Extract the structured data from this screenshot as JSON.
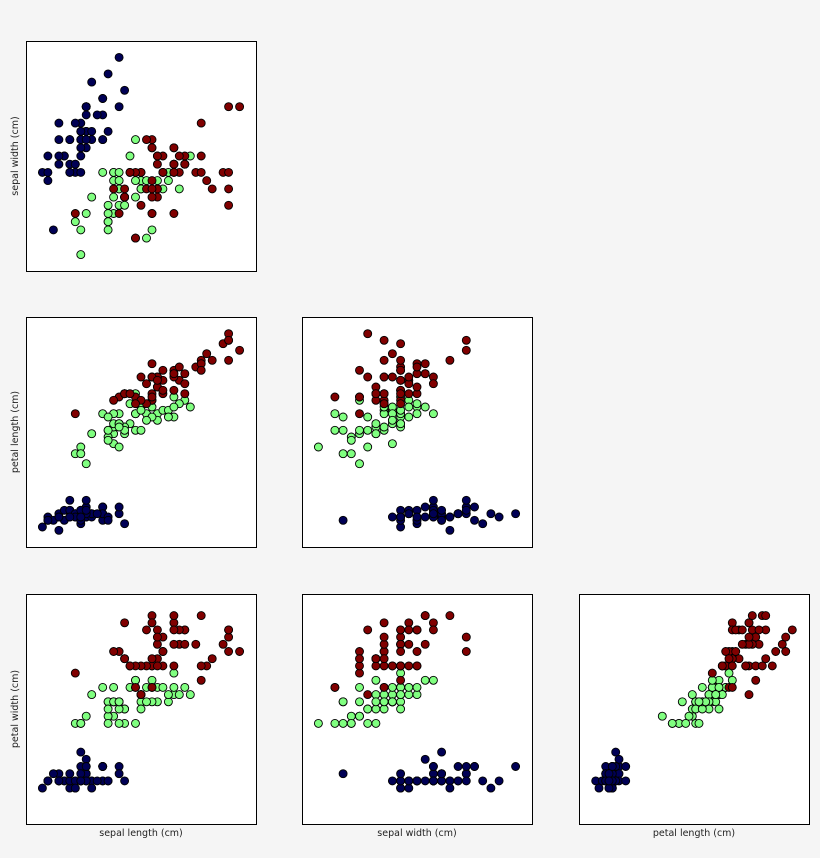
{
  "figure": {
    "title": ""
  },
  "colors": {
    "setosa": "#000055",
    "versicolor": "#80ff80",
    "virginica": "#800000"
  },
  "labels": {
    "sepal_length": "sepal length (cm)",
    "sepal_width": "sepal width (cm)",
    "petal_length": "petal length (cm)",
    "petal_width": "petal width (cm)"
  },
  "chart_data": {
    "type": "scatter",
    "title": "",
    "grid": false,
    "legend": "none",
    "ticks": "hidden",
    "variables": [
      "sepal_length",
      "sepal_width",
      "petal_length",
      "petal_width"
    ],
    "panels": [
      {
        "x": "sepal_length",
        "y": "sepal_width",
        "xlim": [
          4.0,
          8.2
        ],
        "ylim": [
          1.8,
          4.6
        ]
      },
      {
        "x": "sepal_length",
        "y": "petal_length",
        "xlim": [
          4.0,
          8.2
        ],
        "ylim": [
          0.5,
          7.4
        ]
      },
      {
        "x": "sepal_width",
        "y": "petal_length",
        "xlim": [
          1.8,
          4.6
        ],
        "ylim": [
          0.5,
          7.4
        ]
      },
      {
        "x": "sepal_length",
        "y": "petal_width",
        "xlim": [
          4.0,
          8.2
        ],
        "ylim": [
          -0.4,
          2.8
        ]
      },
      {
        "x": "sepal_width",
        "y": "petal_width",
        "xlim": [
          1.8,
          4.6
        ],
        "ylim": [
          -0.4,
          2.8
        ]
      },
      {
        "x": "petal_length",
        "y": "petal_width",
        "xlim": [
          0.5,
          7.4
        ],
        "ylim": [
          -0.4,
          2.8
        ]
      }
    ],
    "series": [
      {
        "key": "setosa",
        "points": [
          [
            5.1,
            3.5,
            1.4,
            0.2
          ],
          [
            4.9,
            3.0,
            1.4,
            0.2
          ],
          [
            4.7,
            3.2,
            1.3,
            0.2
          ],
          [
            4.6,
            3.1,
            1.5,
            0.2
          ],
          [
            5.0,
            3.6,
            1.4,
            0.2
          ],
          [
            5.4,
            3.9,
            1.7,
            0.4
          ],
          [
            4.6,
            3.4,
            1.4,
            0.3
          ],
          [
            5.0,
            3.4,
            1.5,
            0.2
          ],
          [
            4.4,
            2.9,
            1.4,
            0.2
          ],
          [
            4.9,
            3.1,
            1.5,
            0.1
          ],
          [
            5.4,
            3.7,
            1.5,
            0.2
          ],
          [
            4.8,
            3.4,
            1.6,
            0.2
          ],
          [
            4.8,
            3.0,
            1.4,
            0.1
          ],
          [
            4.3,
            3.0,
            1.1,
            0.1
          ],
          [
            5.8,
            4.0,
            1.2,
            0.2
          ],
          [
            5.7,
            4.4,
            1.5,
            0.4
          ],
          [
            5.4,
            3.9,
            1.3,
            0.4
          ],
          [
            5.1,
            3.5,
            1.4,
            0.3
          ],
          [
            5.7,
            3.8,
            1.7,
            0.3
          ],
          [
            5.1,
            3.8,
            1.5,
            0.3
          ],
          [
            5.4,
            3.4,
            1.7,
            0.2
          ],
          [
            5.1,
            3.7,
            1.5,
            0.4
          ],
          [
            4.6,
            3.6,
            1.0,
            0.2
          ],
          [
            5.1,
            3.3,
            1.7,
            0.5
          ],
          [
            4.8,
            3.4,
            1.9,
            0.2
          ],
          [
            5.0,
            3.0,
            1.6,
            0.2
          ],
          [
            5.0,
            3.4,
            1.6,
            0.4
          ],
          [
            5.2,
            3.5,
            1.5,
            0.2
          ],
          [
            5.2,
            3.4,
            1.4,
            0.2
          ],
          [
            4.7,
            3.2,
            1.6,
            0.2
          ],
          [
            4.8,
            3.1,
            1.6,
            0.2
          ],
          [
            5.4,
            3.4,
            1.5,
            0.4
          ],
          [
            5.2,
            4.1,
            1.5,
            0.1
          ],
          [
            5.5,
            4.2,
            1.4,
            0.2
          ],
          [
            4.9,
            3.1,
            1.5,
            0.2
          ],
          [
            5.0,
            3.2,
            1.2,
            0.2
          ],
          [
            5.5,
            3.5,
            1.3,
            0.2
          ],
          [
            4.9,
            3.6,
            1.4,
            0.1
          ],
          [
            4.4,
            3.0,
            1.3,
            0.2
          ],
          [
            5.1,
            3.4,
            1.5,
            0.2
          ],
          [
            5.0,
            3.5,
            1.3,
            0.3
          ],
          [
            4.5,
            2.3,
            1.3,
            0.3
          ],
          [
            4.4,
            3.2,
            1.3,
            0.2
          ],
          [
            5.0,
            3.5,
            1.6,
            0.6
          ],
          [
            5.1,
            3.8,
            1.9,
            0.4
          ],
          [
            4.8,
            3.0,
            1.4,
            0.3
          ],
          [
            5.1,
            3.8,
            1.6,
            0.2
          ],
          [
            4.6,
            3.2,
            1.4,
            0.2
          ],
          [
            5.3,
            3.7,
            1.5,
            0.2
          ],
          [
            5.0,
            3.3,
            1.4,
            0.2
          ]
        ]
      },
      {
        "key": "versicolor",
        "points": [
          [
            7.0,
            3.2,
            4.7,
            1.4
          ],
          [
            6.4,
            3.2,
            4.5,
            1.5
          ],
          [
            6.9,
            3.1,
            4.9,
            1.5
          ],
          [
            5.5,
            2.3,
            4.0,
            1.3
          ],
          [
            6.5,
            2.8,
            4.6,
            1.5
          ],
          [
            5.7,
            2.8,
            4.5,
            1.3
          ],
          [
            6.3,
            3.3,
            4.7,
            1.6
          ],
          [
            4.9,
            2.4,
            3.3,
            1.0
          ],
          [
            6.6,
            2.9,
            4.6,
            1.3
          ],
          [
            5.2,
            2.7,
            3.9,
            1.4
          ],
          [
            5.0,
            2.0,
            3.5,
            1.0
          ],
          [
            5.9,
            3.0,
            4.2,
            1.5
          ],
          [
            6.0,
            2.2,
            4.0,
            1.0
          ],
          [
            6.1,
            2.9,
            4.7,
            1.4
          ],
          [
            5.6,
            2.9,
            3.6,
            1.3
          ],
          [
            6.7,
            3.1,
            4.4,
            1.4
          ],
          [
            5.6,
            3.0,
            4.5,
            1.5
          ],
          [
            5.8,
            2.7,
            4.1,
            1.0
          ],
          [
            6.2,
            2.2,
            4.5,
            1.5
          ],
          [
            5.6,
            2.5,
            3.9,
            1.1
          ],
          [
            5.9,
            3.2,
            4.8,
            1.8
          ],
          [
            6.1,
            2.8,
            4.0,
            1.3
          ],
          [
            6.3,
            2.5,
            4.9,
            1.5
          ],
          [
            6.1,
            2.8,
            4.7,
            1.2
          ],
          [
            6.4,
            2.9,
            4.3,
            1.3
          ],
          [
            6.6,
            3.0,
            4.4,
            1.4
          ],
          [
            6.8,
            2.8,
            4.8,
            1.4
          ],
          [
            6.7,
            3.0,
            5.0,
            1.7
          ],
          [
            6.0,
            2.9,
            4.5,
            1.5
          ],
          [
            5.7,
            2.6,
            3.5,
            1.0
          ],
          [
            5.5,
            2.4,
            3.8,
            1.1
          ],
          [
            5.5,
            2.4,
            3.7,
            1.0
          ],
          [
            5.8,
            2.7,
            3.9,
            1.2
          ],
          [
            6.0,
            2.7,
            5.1,
            1.6
          ],
          [
            5.4,
            3.0,
            4.5,
            1.5
          ],
          [
            6.0,
            3.4,
            4.5,
            1.6
          ],
          [
            6.7,
            3.1,
            4.7,
            1.5
          ],
          [
            6.3,
            2.3,
            4.4,
            1.3
          ],
          [
            5.6,
            3.0,
            4.1,
            1.3
          ],
          [
            5.5,
            2.5,
            4.0,
            1.3
          ],
          [
            5.5,
            2.6,
            4.4,
            1.2
          ],
          [
            6.1,
            3.0,
            4.6,
            1.4
          ],
          [
            5.8,
            2.6,
            4.0,
            1.2
          ],
          [
            5.0,
            2.3,
            3.3,
            1.0
          ],
          [
            5.6,
            2.7,
            4.2,
            1.3
          ],
          [
            5.7,
            3.0,
            4.2,
            1.2
          ],
          [
            5.7,
            2.9,
            4.2,
            1.3
          ],
          [
            6.2,
            2.9,
            4.3,
            1.3
          ],
          [
            5.1,
            2.5,
            3.0,
            1.1
          ],
          [
            5.7,
            2.8,
            4.1,
            1.3
          ]
        ]
      },
      {
        "key": "virginica",
        "points": [
          [
            6.3,
            3.3,
            6.0,
            2.5
          ],
          [
            5.8,
            2.7,
            5.1,
            1.9
          ],
          [
            7.1,
            3.0,
            5.9,
            2.1
          ],
          [
            6.3,
            2.9,
            5.6,
            1.8
          ],
          [
            6.5,
            3.0,
            5.8,
            2.2
          ],
          [
            7.6,
            3.0,
            6.6,
            2.1
          ],
          [
            4.9,
            2.5,
            4.5,
            1.7
          ],
          [
            7.3,
            2.9,
            6.3,
            1.8
          ],
          [
            6.7,
            2.5,
            5.8,
            1.8
          ],
          [
            7.2,
            3.6,
            6.1,
            2.5
          ],
          [
            6.5,
            3.2,
            5.1,
            2.0
          ],
          [
            6.4,
            2.7,
            5.3,
            1.9
          ],
          [
            6.8,
            3.0,
            5.5,
            2.1
          ],
          [
            5.7,
            2.5,
            5.0,
            2.0
          ],
          [
            5.8,
            2.8,
            5.1,
            2.4
          ],
          [
            6.4,
            3.2,
            5.3,
            2.3
          ],
          [
            6.5,
            3.0,
            5.5,
            1.8
          ],
          [
            7.7,
            3.8,
            6.7,
            2.2
          ],
          [
            7.7,
            2.6,
            6.9,
            2.3
          ],
          [
            6.0,
            2.2,
            5.0,
            1.5
          ],
          [
            6.9,
            3.2,
            5.7,
            2.3
          ],
          [
            5.6,
            2.8,
            4.9,
            2.0
          ],
          [
            7.7,
            2.8,
            6.7,
            2.0
          ],
          [
            6.3,
            2.7,
            4.9,
            1.8
          ],
          [
            6.7,
            3.3,
            5.7,
            2.1
          ],
          [
            7.2,
            3.2,
            6.0,
            1.8
          ],
          [
            6.2,
            2.8,
            4.8,
            1.8
          ],
          [
            6.1,
            3.0,
            4.9,
            1.8
          ],
          [
            6.4,
            2.8,
            5.6,
            2.1
          ],
          [
            7.2,
            3.0,
            5.8,
            1.6
          ],
          [
            7.4,
            2.8,
            6.1,
            1.9
          ],
          [
            7.9,
            3.8,
            6.4,
            2.0
          ],
          [
            6.4,
            2.8,
            5.6,
            2.2
          ],
          [
            6.3,
            2.8,
            5.1,
            1.5
          ],
          [
            6.1,
            2.6,
            5.6,
            1.4
          ],
          [
            7.7,
            3.0,
            6.1,
            2.3
          ],
          [
            6.3,
            3.4,
            5.6,
            2.4
          ],
          [
            6.4,
            3.1,
            5.5,
            1.8
          ],
          [
            6.0,
            3.0,
            4.8,
            1.8
          ],
          [
            6.9,
            3.1,
            5.4,
            2.1
          ],
          [
            6.7,
            3.1,
            5.6,
            2.4
          ],
          [
            6.9,
            3.1,
            5.1,
            2.3
          ],
          [
            5.8,
            2.7,
            5.1,
            1.9
          ],
          [
            6.8,
            3.2,
            5.9,
            2.3
          ],
          [
            6.7,
            3.3,
            5.7,
            2.5
          ],
          [
            6.7,
            3.0,
            5.2,
            2.3
          ],
          [
            6.3,
            2.5,
            5.0,
            1.9
          ],
          [
            6.5,
            3.0,
            5.2,
            2.0
          ],
          [
            6.2,
            3.4,
            5.4,
            2.3
          ],
          [
            5.9,
            3.0,
            5.1,
            1.8
          ]
        ]
      }
    ]
  }
}
